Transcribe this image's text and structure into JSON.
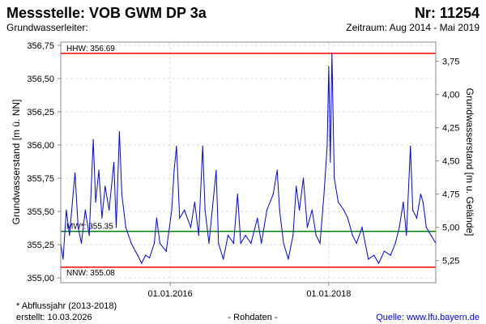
{
  "header": {
    "title": "Messstelle: VOB GWM DP 3a",
    "number": "Nr: 11254",
    "aquifer": "Grundwasserleiter:",
    "period": "Zeitraum: Aug 2014 - Mai 2019"
  },
  "footer": {
    "note": "* Abflussjahr (2013-2018)",
    "created": "erstellt:  10.03.2026",
    "raw": "- Rohdaten -",
    "source": "Quelle: www.lfu.bayern.de"
  },
  "colors": {
    "series": "#0000ff",
    "extreme": "#ff0000",
    "mean": "#008000"
  },
  "chart_data": {
    "type": "line",
    "ylabel": "Grundwasserstand [m ü. NN]",
    "y2label": "Grundwasserstand [m u. Gelände]",
    "ylim": [
      355.0,
      356.75
    ],
    "yticks": [
      356.75,
      356.5,
      356.25,
      356.0,
      355.75,
      355.5,
      355.25,
      355.0
    ],
    "ytick_labels": [
      "356,75",
      "356,50",
      "356,25",
      "356,00",
      "355,75",
      "355,50",
      "355,25",
      "355,00"
    ],
    "ground_level": 360.38,
    "y2ticks": [
      3.75,
      4.0,
      4.25,
      4.5,
      4.75,
      5.0,
      5.25
    ],
    "y2tick_labels": [
      "3,75",
      "4,00",
      "4,25",
      "4,50",
      "4,75",
      "5,00",
      "5,25"
    ],
    "xlim": [
      2014.62,
      2019.35
    ],
    "xticks": [
      2016.0,
      2018.0
    ],
    "xtick_labels": [
      "01.01.2016",
      "01.01.2018"
    ],
    "grid": true,
    "reference_lines": [
      {
        "label": "HHW: 356.69",
        "value": 356.69,
        "color": "#ff0000",
        "label_pos": "above"
      },
      {
        "label": "MW*: 355.35",
        "value": 355.35,
        "color": "#008000",
        "label_pos": "above"
      },
      {
        "label": "NNW: 355.08",
        "value": 355.08,
        "color": "#ff0000",
        "label_pos": "below"
      }
    ],
    "series": [
      {
        "name": "Grundwasserstand",
        "x": [
          2014.62,
          2014.65,
          2014.69,
          2014.73,
          2014.8,
          2014.84,
          2014.88,
          2014.93,
          2014.98,
          2015.03,
          2015.06,
          2015.1,
          2015.14,
          2015.18,
          2015.23,
          2015.29,
          2015.32,
          2015.36,
          2015.39,
          2015.44,
          2015.51,
          2015.59,
          2015.64,
          2015.69,
          2015.74,
          2015.8,
          2015.83,
          2015.87,
          2015.95,
          2016.02,
          2016.05,
          2016.08,
          2016.12,
          2016.18,
          2016.26,
          2016.31,
          2016.36,
          2016.41,
          2016.44,
          2016.49,
          2016.53,
          2016.58,
          2016.61,
          2016.67,
          2016.73,
          2016.8,
          2016.85,
          2016.89,
          2016.95,
          2017.02,
          2017.1,
          2017.15,
          2017.22,
          2017.3,
          2017.35,
          2017.38,
          2017.43,
          2017.49,
          2017.55,
          2017.59,
          2017.63,
          2017.68,
          2017.73,
          2017.79,
          2017.84,
          2017.89,
          2017.94,
          2017.98,
          2018.0,
          2018.02,
          2018.04,
          2018.07,
          2018.12,
          2018.19,
          2018.24,
          2018.3,
          2018.35,
          2018.42,
          2018.5,
          2018.57,
          2018.63,
          2018.7,
          2018.78,
          2018.84,
          2018.89,
          2018.94,
          2018.98,
          2019.03,
          2019.06,
          2019.11,
          2019.16,
          2019.19,
          2019.23,
          2019.29,
          2019.35
        ],
        "values": [
          355.26,
          355.14,
          355.51,
          355.32,
          355.79,
          355.38,
          355.26,
          355.51,
          355.32,
          356.04,
          355.57,
          355.81,
          355.45,
          355.69,
          355.51,
          355.87,
          355.38,
          356.1,
          355.63,
          355.38,
          355.26,
          355.17,
          355.11,
          355.17,
          355.15,
          355.26,
          355.45,
          355.26,
          355.2,
          355.51,
          355.81,
          355.99,
          355.45,
          355.51,
          355.38,
          355.57,
          355.32,
          355.99,
          355.51,
          355.26,
          355.51,
          355.81,
          355.26,
          355.14,
          355.32,
          355.26,
          355.63,
          355.26,
          355.32,
          355.26,
          355.45,
          355.26,
          355.51,
          355.63,
          355.81,
          355.51,
          355.26,
          355.14,
          355.32,
          355.69,
          355.51,
          355.75,
          355.38,
          355.51,
          355.32,
          355.26,
          355.63,
          355.99,
          356.59,
          355.87,
          356.69,
          355.75,
          355.57,
          355.51,
          355.45,
          355.32,
          355.26,
          355.38,
          355.14,
          355.17,
          355.11,
          355.2,
          355.17,
          355.26,
          355.38,
          355.57,
          355.32,
          355.99,
          355.51,
          355.45,
          355.63,
          355.57,
          355.38,
          355.32,
          355.26
        ]
      }
    ]
  }
}
